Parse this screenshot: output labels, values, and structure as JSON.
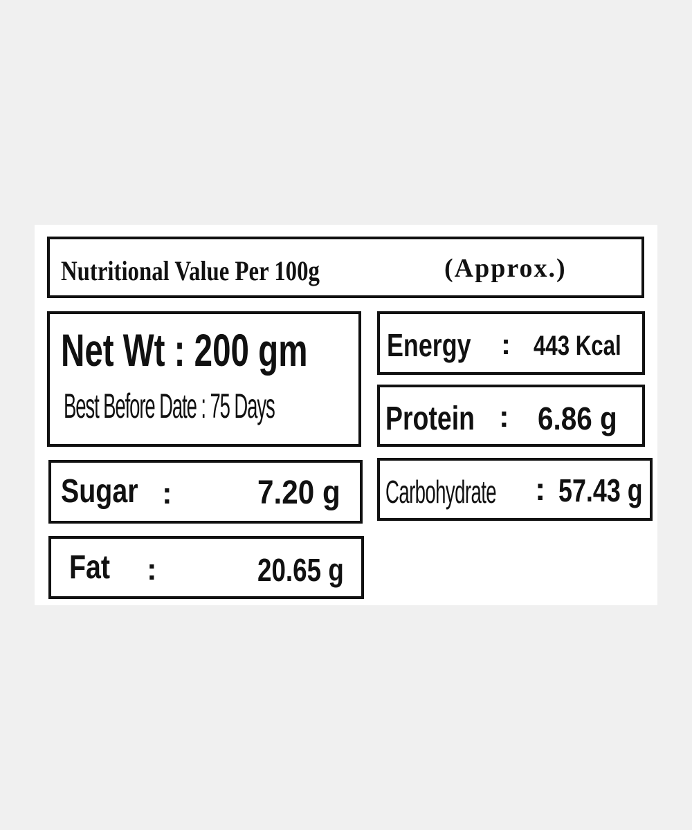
{
  "header": {
    "title": "Nutritional Value Per 100g",
    "note": "(Approx.)"
  },
  "separator": ":",
  "net_weight": "Net Wt : 200 gm",
  "best_before": "Best Before Date : 75 Days",
  "nutrients": [
    {
      "label": "Energy",
      "value": "443 Kcal"
    },
    {
      "label": "Protein",
      "value": "6.86 g"
    },
    {
      "label": "Sugar",
      "value": "7.20 g"
    },
    {
      "label": "Carbohydrate",
      "value": "57.43 g"
    },
    {
      "label": "Fat",
      "value": "20.65 g"
    }
  ]
}
